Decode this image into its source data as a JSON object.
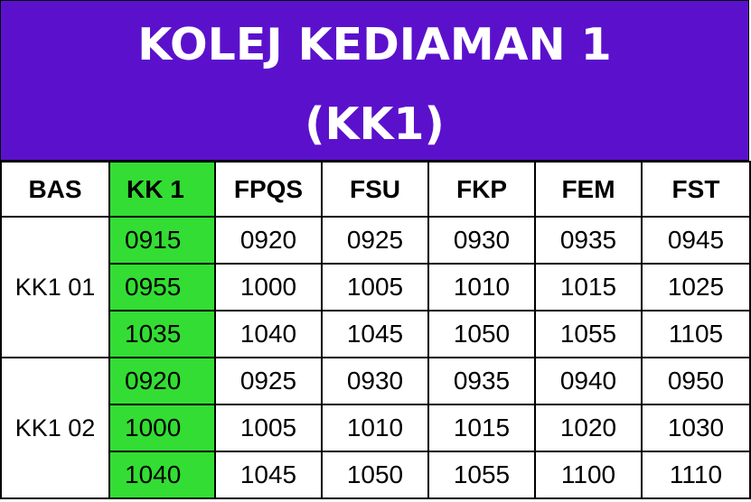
{
  "banner": {
    "title_line1": "KOLEJ KEDIAMAN 1",
    "title_line2": "(KK1)",
    "bg_color": "#5b11cc",
    "text_color": "#ffffff"
  },
  "table": {
    "highlight_color": "#33dd33",
    "headers": [
      "BAS",
      "KK 1",
      "FPQS",
      "FSU",
      "FKP",
      "FEM",
      "FST"
    ],
    "groups": [
      {
        "bus": "KK1 01",
        "rows": [
          [
            "0915",
            "0920",
            "0925",
            "0930",
            "0935",
            "0945"
          ],
          [
            "0955",
            "1000",
            "1005",
            "1010",
            "1015",
            "1025"
          ],
          [
            "1035",
            "1040",
            "1045",
            "1050",
            "1055",
            "1105"
          ]
        ]
      },
      {
        "bus": "KK1 02",
        "rows": [
          [
            "0920",
            "0925",
            "0930",
            "0935",
            "0940",
            "0950"
          ],
          [
            "1000",
            "1005",
            "1010",
            "1015",
            "1020",
            "1030"
          ],
          [
            "1040",
            "1045",
            "1050",
            "1055",
            "1100",
            "1110"
          ]
        ]
      }
    ]
  }
}
